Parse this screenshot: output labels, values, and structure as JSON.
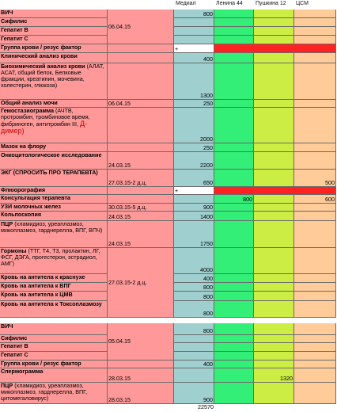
{
  "colors": {
    "name_bg": "#ff9999",
    "medial_bg": "#9fcfcf",
    "lenina_bg": "#33ee77",
    "pushkina_bg": "#ccee44",
    "csm_bg": "#ffcc99",
    "highlight_bg": "#ff2222"
  },
  "headers": [
    "Медиал",
    "Ленина 44",
    "Пушкина 12",
    "ЦСМ"
  ],
  "rows": [
    {
      "name": "ВИЧ",
      "date": "",
      "medial": "800",
      "lenina": "",
      "pushkina": "",
      "csm": ""
    },
    {
      "name": "Сифилис",
      "date": "06.04.15",
      "medial": "",
      "lenina": "",
      "pushkina": "",
      "csm": ""
    },
    {
      "name": "Гепатит В",
      "date": "",
      "medial": "",
      "lenina": "",
      "pushkina": "",
      "csm": ""
    },
    {
      "name": "Гепатит С",
      "date": "",
      "medial": "",
      "lenina": "",
      "pushkina": "",
      "csm": ""
    },
    {
      "name": "Группа крови  / резус фактор",
      "date": "",
      "medial": "+",
      "lenina": "",
      "pushkina": "",
      "csm": ""
    },
    {
      "name": "Клинический анализ крови",
      "date": "",
      "medial": "400",
      "lenina": "",
      "pushkina": "",
      "csm": ""
    },
    {
      "name": "Биохимический анализ крови",
      "sub": "(АЛАТ, АСАТ, общий белок, Белковые фракции, креатинин, мочевина, холестерин, глюкоза)",
      "date": "",
      "medial": "1300",
      "lenina": "",
      "pushkina": "",
      "csm": ""
    },
    {
      "name": "Общий анализ мочи",
      "date": "06.04.15",
      "medial": "250",
      "lenina": "",
      "pushkina": "",
      "csm": ""
    },
    {
      "name": "Гемостазиограмма",
      "sub": "(АЧТВ, протромбин, тромбиновое время, фибриноген, антитромбин III,",
      "tail": "Д-димер)",
      "date": "",
      "medial": "2000",
      "lenina": "",
      "pushkina": "",
      "csm": ""
    },
    {
      "name": "Мазок на флору",
      "date": "",
      "medial": "250",
      "lenina": "",
      "pushkina": "",
      "csm": ""
    },
    {
      "name": "Онкоцитологическое исследование",
      "date": "24.03.15",
      "medial": "2200",
      "lenina": "",
      "pushkina": "",
      "csm": ""
    },
    {
      "name": "ЭКГ (СПРОСИТЬ ПРО ТЕРАПЕВТА)",
      "date": "27.03.15-2 д.ц.",
      "medial": "650",
      "lenina": "",
      "pushkina": "",
      "csm": "500"
    },
    {
      "name": "Флюорография",
      "date": "",
      "medial": "+",
      "lenina": "",
      "pushkina": "",
      "csm": ""
    },
    {
      "name": "Консультация терапевта",
      "date": "",
      "medial": "",
      "lenina": "800",
      "pushkina": "",
      "csm": "600"
    },
    {
      "name": "УЗИ молочных желез",
      "date": "30.03.15-5 д.ц.",
      "medial": "900",
      "lenina": "",
      "pushkina": "",
      "csm": ""
    },
    {
      "name": "Кольпоскопия",
      "date": "24.03.15",
      "medial": "1400",
      "lenina": "",
      "pushkina": "",
      "csm": ""
    },
    {
      "name": "ПЦР",
      "sub": "(хламидиоз, уреаплазмоз, микоплазмоз, гарднерелла, ВПГ, ВПЧ)",
      "date": "24.03.15",
      "medial": "1750",
      "lenina": "",
      "pushkina": "",
      "csm": ""
    },
    {
      "name": "Гормоны",
      "sub": "(ТТГ, Т4, Т3, пролактин, ЛГ, ФСГ, ДЭГА, прогестерон, эстрадиол, АМГ)",
      "date": "",
      "medial": "4000",
      "lenina": "",
      "pushkina": "",
      "csm": ""
    },
    {
      "name": "Кровь на антитела к краснухе",
      "date": "27.03.15-2 д.ц.",
      "medial": "400",
      "lenina": "",
      "pushkina": "",
      "csm": ""
    },
    {
      "name": "Кровь на антитела к ВПГ",
      "date": "",
      "medial": "800",
      "lenina": "",
      "pushkina": "",
      "csm": ""
    },
    {
      "name": "Кровь на антитела к ЦМВ",
      "date": "",
      "medial": "800",
      "lenina": "",
      "pushkina": "",
      "csm": ""
    },
    {
      "name": "Кровь на антитела к Токсоплазмозу",
      "date": "",
      "medial": "800",
      "lenina": "",
      "pushkina": "",
      "csm": ""
    },
    {
      "name": "ВИЧ",
      "date": "",
      "medial": "800",
      "lenina": "",
      "pushkina": "",
      "csm": ""
    },
    {
      "name": "Сифилис",
      "date": "05.04.15",
      "medial": "",
      "lenina": "",
      "pushkina": "",
      "csm": ""
    },
    {
      "name": "Гепатит В",
      "date": "",
      "medial": "",
      "lenina": "",
      "pushkina": "",
      "csm": ""
    },
    {
      "name": "Гепатит С",
      "date": "",
      "medial": "",
      "lenina": "",
      "pushkina": "",
      "csm": ""
    },
    {
      "name": "Группа крови / резус фактор",
      "date": "",
      "medial": "400",
      "lenina": "",
      "pushkina": "",
      "csm": ""
    },
    {
      "name": "Спермограмма",
      "date": "28.03.15",
      "medial": "",
      "lenina": "",
      "pushkina": "1320",
      "csm": ""
    },
    {
      "name": "ПЦР",
      "sub": "(хламидиоз, уреаплазмоз, микоплазмоз, гарднерелла, ВПГ, цитомегаловирус)",
      "date": "28.03.15",
      "medial": "900",
      "lenina": "",
      "pushkina": "",
      "csm": ""
    }
  ],
  "total": "22570"
}
